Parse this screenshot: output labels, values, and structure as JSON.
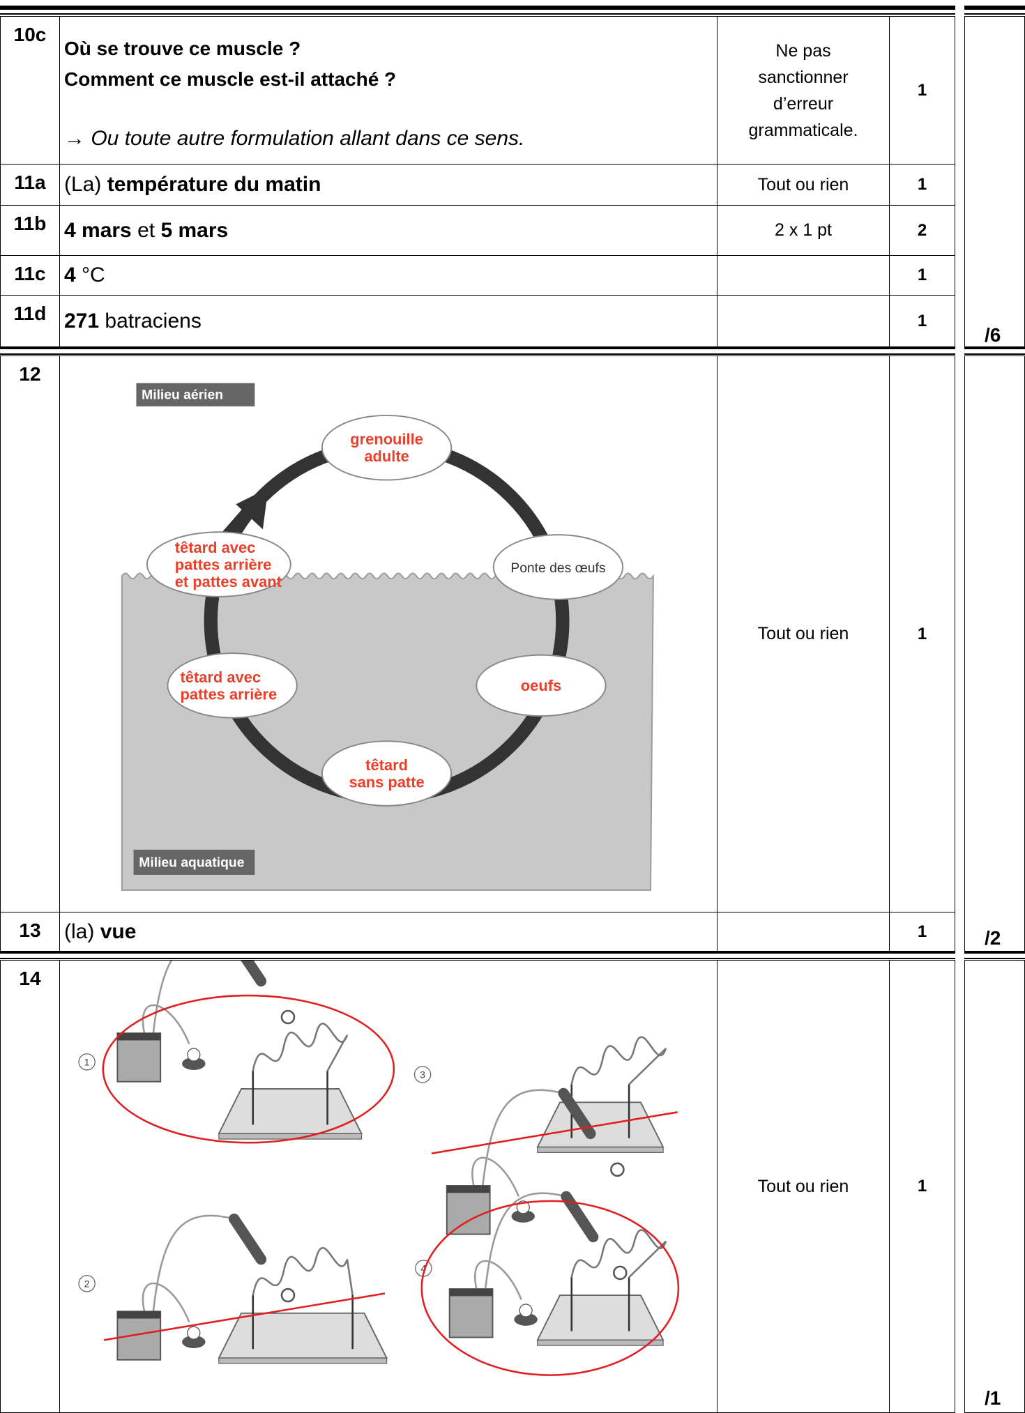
{
  "rows": [
    {
      "id": "10c",
      "answer": {
        "lines": [
          "Où se trouve ce muscle ?",
          "Comment ce muscle est-il attaché ?"
        ],
        "remark": "→ Ou toute autre formulation allant dans ce sens."
      },
      "note": "Ne pas sanctionner d’erreur grammaticale.",
      "points": 1
    },
    {
      "id": "11a",
      "answer": [
        "(La)",
        "température du matin"
      ],
      "note": "Tout ou rien",
      "points": 1
    },
    {
      "id": "11b",
      "answer": [
        "4 mars",
        "et",
        "5 mars"
      ],
      "note": "2 x 1 pt",
      "points": 2
    },
    {
      "id": "11c",
      "answer": [
        "4",
        "°C"
      ],
      "points": 1
    },
    {
      "id": "11d",
      "answer": [
        "271",
        "batraciens"
      ],
      "points": 1
    },
    {
      "id": "12",
      "figure": {
        "zones": [
          "Milieu aérien",
          "Milieu aquatique"
        ],
        "stages": [
          [
            "grenouille",
            "adulte"
          ],
          [
            "Ponte des œufs"
          ],
          [
            "oeufs"
          ],
          [
            "têtard",
            "sans patte"
          ],
          [
            "têtard avec",
            "pattes arrière"
          ],
          [
            "têtard avec",
            "pattes arrière",
            "et pattes avant"
          ]
        ]
      },
      "note": "Tout ou rien",
      "points": 1
    },
    {
      "id": "13",
      "answer": [
        "(la)",
        "vue"
      ],
      "points": 1
    },
    {
      "id": "14",
      "figure": {
        "labels": [
          1,
          2,
          3,
          4
        ]
      },
      "note": "Tout ou rien",
      "points": 1
    }
  ],
  "totals": [
    "/6",
    "/2",
    "/1"
  ]
}
